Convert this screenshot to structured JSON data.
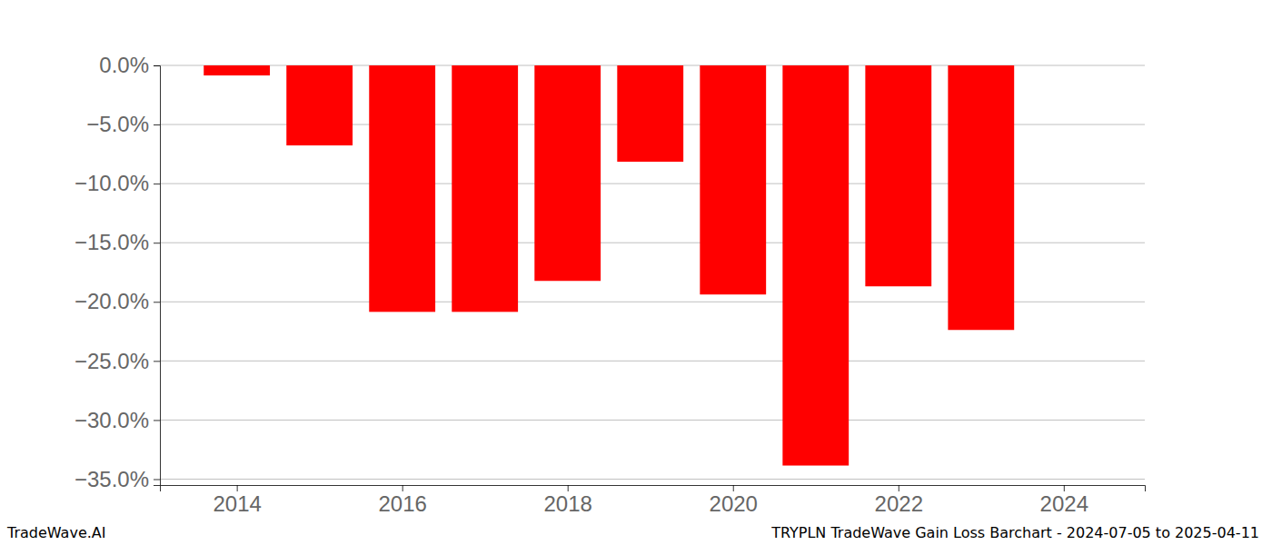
{
  "chart_data": {
    "type": "bar",
    "title": "TRYPLN TradeWave Gain Loss Barchart - 2024-07-05 to 2025-04-11",
    "annotations": [
      "TradeWave.AI"
    ],
    "x": [
      2014,
      2015,
      2016,
      2017,
      2018,
      2019,
      2020,
      2021,
      2022,
      2023
    ],
    "values": [
      -0.85,
      -6.77,
      -20.85,
      -20.85,
      -18.23,
      -8.15,
      -19.38,
      -33.85,
      -18.69,
      -22.38
    ],
    "color": "#ff0000",
    "xlim": [
      2013.07,
      2024.98
    ],
    "xticks": [
      2014,
      2016,
      2018,
      2020,
      2022,
      2024
    ],
    "ylim": [
      -35.5,
      0
    ],
    "yticks": [
      {
        "value": 0,
        "label": "0.0%"
      },
      {
        "value": -5,
        "label": "−5.0%"
      },
      {
        "value": -10,
        "label": "−10.0%"
      },
      {
        "value": -15,
        "label": "−15.0%"
      },
      {
        "value": -20,
        "label": "−20.0%"
      },
      {
        "value": -25,
        "label": "−25.0%"
      },
      {
        "value": -30,
        "label": "−30.0%"
      },
      {
        "value": -35,
        "label": "−35.0%"
      }
    ],
    "grid": true
  }
}
